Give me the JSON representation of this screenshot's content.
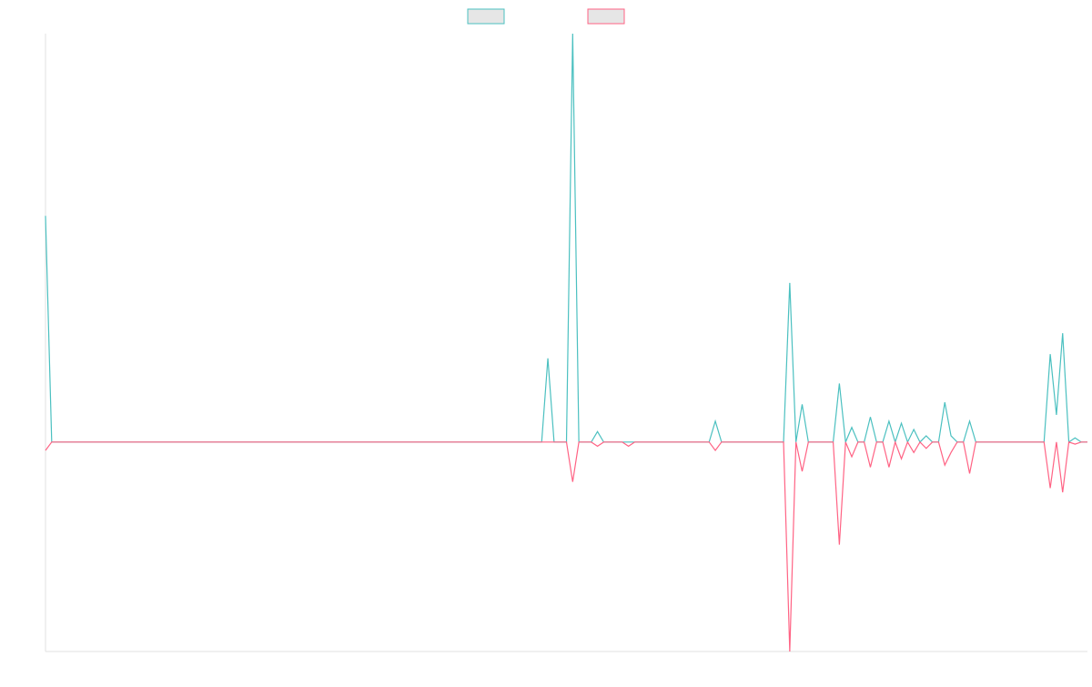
{
  "chart_data": {
    "type": "line",
    "title": "",
    "xlabel": "",
    "ylabel": "",
    "ylim": [
      -100,
      195
    ],
    "x_count": 169,
    "grid": false,
    "legend": {
      "placement": "top-center",
      "style": "boxes"
    },
    "series": [
      {
        "key": "series_a",
        "name": "",
        "color": "#4bc0c0",
        "fill": "#e6e6e6",
        "points": [
          [
            0,
            108
          ],
          [
            1,
            0
          ],
          [
            80,
            0
          ],
          [
            81,
            40
          ],
          [
            82,
            0
          ],
          [
            84,
            0
          ],
          [
            85,
            195
          ],
          [
            86,
            0
          ],
          [
            88,
            0
          ],
          [
            89,
            5
          ],
          [
            90,
            0
          ],
          [
            93,
            0
          ],
          [
            94,
            0
          ],
          [
            95,
            0
          ],
          [
            106,
            0
          ],
          [
            107,
            0
          ],
          [
            108,
            10
          ],
          [
            109,
            0
          ],
          [
            119,
            0
          ],
          [
            120,
            76
          ],
          [
            121,
            0
          ],
          [
            122,
            18
          ],
          [
            123,
            0
          ],
          [
            127,
            0
          ],
          [
            128,
            28
          ],
          [
            129,
            0
          ],
          [
            130,
            7
          ],
          [
            131,
            0
          ],
          [
            132,
            0
          ],
          [
            133,
            12
          ],
          [
            134,
            0
          ],
          [
            135,
            0
          ],
          [
            136,
            10
          ],
          [
            137,
            0
          ],
          [
            138,
            9
          ],
          [
            139,
            0
          ],
          [
            140,
            6
          ],
          [
            141,
            0
          ],
          [
            142,
            3
          ],
          [
            143,
            0
          ],
          [
            144,
            0
          ],
          [
            145,
            19
          ],
          [
            146,
            3
          ],
          [
            147,
            0
          ],
          [
            148,
            0
          ],
          [
            149,
            10
          ],
          [
            150,
            0
          ],
          [
            151,
            0
          ],
          [
            154,
            0
          ],
          [
            156,
            0
          ],
          [
            158,
            0
          ],
          [
            160,
            0
          ],
          [
            161,
            0
          ],
          [
            162,
            42
          ],
          [
            163,
            13
          ],
          [
            164,
            52
          ],
          [
            165,
            0
          ],
          [
            166,
            2
          ],
          [
            167,
            0
          ],
          [
            168,
            0
          ]
        ]
      },
      {
        "key": "series_b",
        "name": "",
        "color": "#ff6384",
        "fill": "#e6e6e6",
        "points": [
          [
            0,
            -4
          ],
          [
            1,
            0
          ],
          [
            80,
            0
          ],
          [
            82,
            0
          ],
          [
            84,
            0
          ],
          [
            85,
            -19
          ],
          [
            86,
            0
          ],
          [
            88,
            0
          ],
          [
            89,
            -2
          ],
          [
            90,
            0
          ],
          [
            93,
            0
          ],
          [
            94,
            -2
          ],
          [
            95,
            0
          ],
          [
            106,
            0
          ],
          [
            107,
            0
          ],
          [
            108,
            -4
          ],
          [
            109,
            0
          ],
          [
            119,
            0
          ],
          [
            120,
            -100
          ],
          [
            121,
            0
          ],
          [
            122,
            -14
          ],
          [
            123,
            0
          ],
          [
            127,
            0
          ],
          [
            128,
            -49
          ],
          [
            129,
            0
          ],
          [
            130,
            -7
          ],
          [
            131,
            0
          ],
          [
            132,
            0
          ],
          [
            133,
            -12
          ],
          [
            134,
            0
          ],
          [
            135,
            0
          ],
          [
            136,
            -12
          ],
          [
            137,
            0
          ],
          [
            138,
            -8
          ],
          [
            139,
            0
          ],
          [
            140,
            -5
          ],
          [
            141,
            0
          ],
          [
            142,
            -3
          ],
          [
            143,
            0
          ],
          [
            144,
            0
          ],
          [
            145,
            -11
          ],
          [
            146,
            -5
          ],
          [
            147,
            0
          ],
          [
            148,
            0
          ],
          [
            149,
            -15
          ],
          [
            150,
            0
          ],
          [
            151,
            0
          ],
          [
            154,
            0
          ],
          [
            156,
            0
          ],
          [
            158,
            0
          ],
          [
            160,
            0
          ],
          [
            161,
            0
          ],
          [
            162,
            -22
          ],
          [
            163,
            0
          ],
          [
            164,
            -24
          ],
          [
            165,
            0
          ],
          [
            166,
            -1
          ],
          [
            167,
            0
          ],
          [
            168,
            0
          ]
        ]
      }
    ]
  }
}
